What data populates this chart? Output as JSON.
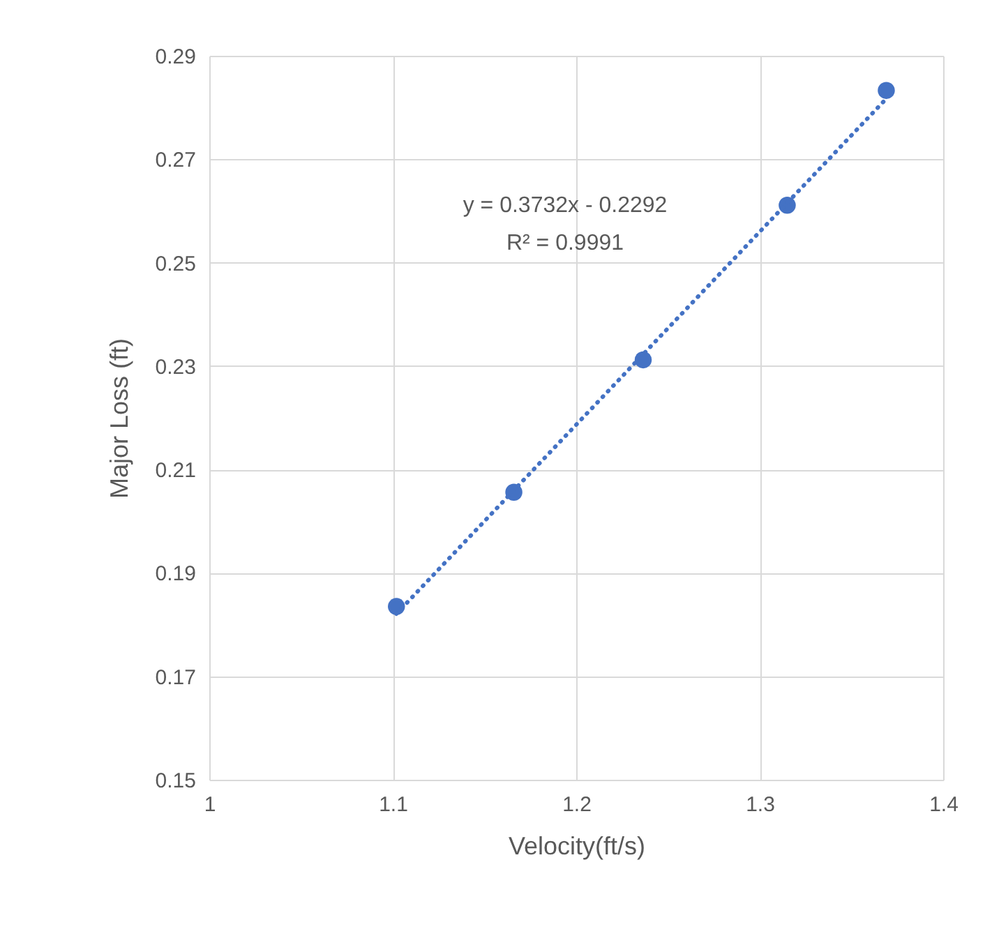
{
  "chart_data": {
    "type": "scatter",
    "xlabel": "Velocity(ft/s)",
    "ylabel": "Major Loss (ft)",
    "series": [
      {
        "color": "#4472c4",
        "marker": "circle",
        "x": [
          1.102,
          1.166,
          1.2365,
          1.315,
          1.369
        ],
        "values": [
          0.1835,
          0.2056,
          0.2312,
          0.2611,
          0.2833
        ]
      },
      {
        "type": "line",
        "color": "#4472c4",
        "line_style": "dotted",
        "marker": "none",
        "x": [
          1.102,
          1.369
        ],
        "values": [
          0.1821,
          0.2817
        ]
      }
    ],
    "annotations": [
      "y = 0.3732x - 0.2292",
      "R² = 0.9991"
    ],
    "xlim": [
      1,
      1.4
    ],
    "xticks": [
      1,
      1.1,
      1.2,
      1.3,
      1.4
    ],
    "ylim": [
      0.15,
      0.29
    ],
    "yticks": [
      0.15,
      0.17,
      0.19,
      0.21,
      0.23,
      0.25,
      0.27,
      0.29
    ],
    "grid": true
  }
}
